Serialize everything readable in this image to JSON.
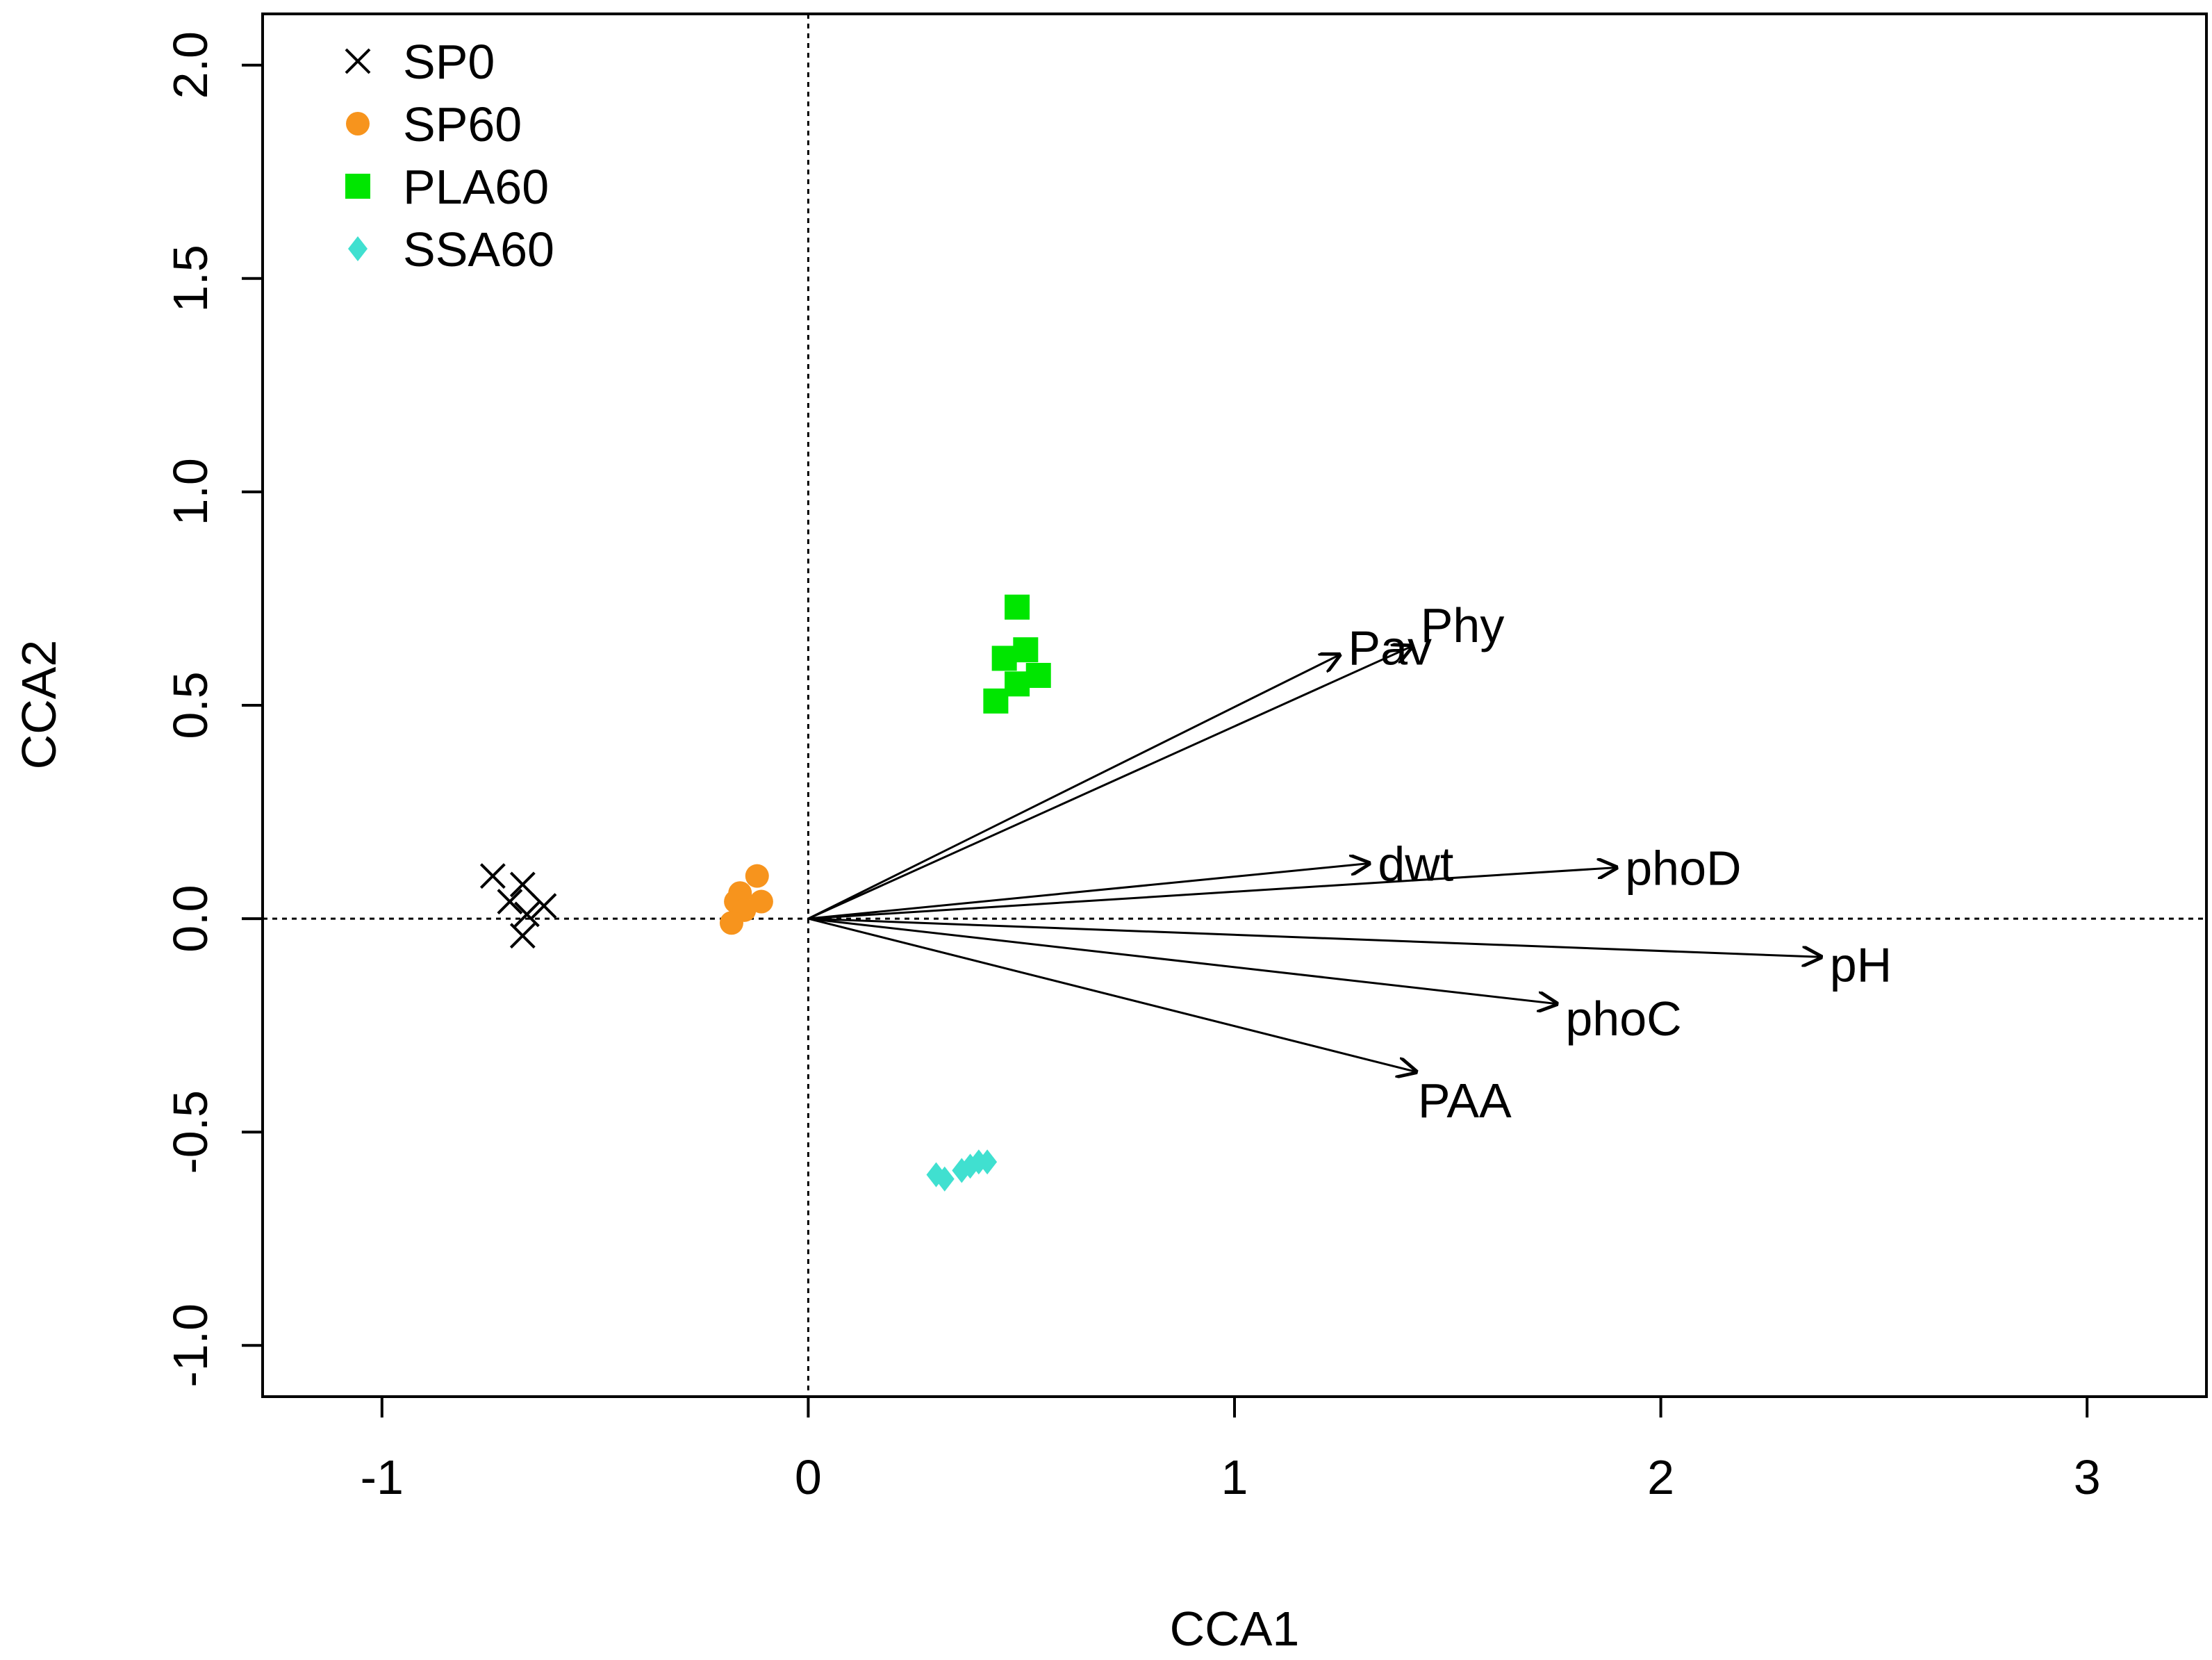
{
  "chart_data": {
    "type": "scatter",
    "title": "",
    "xlabel": "CCA1",
    "ylabel": "CCA2",
    "xlim": [
      -1.28,
      3.28
    ],
    "ylim": [
      -1.12,
      2.12
    ],
    "xticks": [
      -1,
      0,
      1,
      2,
      3
    ],
    "xtick_labels": [
      "-1",
      "0",
      "1",
      "2",
      "3"
    ],
    "yticks": [
      -1.0,
      -0.5,
      0.0,
      0.5,
      1.0,
      1.5,
      2.0
    ],
    "ytick_labels": [
      "-1.0",
      "-0.5",
      "0.0",
      "0.5",
      "1.0",
      "1.5",
      "2.0"
    ],
    "reference_lines": {
      "x": 0,
      "y": 0,
      "style": "dotted"
    },
    "legend_position": "top-left",
    "series": [
      {
        "name": "SP0",
        "marker": "x",
        "color": "#000000",
        "points": [
          [
            -0.74,
            0.1
          ],
          [
            -0.67,
            0.08
          ],
          [
            -0.7,
            0.04
          ],
          [
            -0.62,
            0.03
          ],
          [
            -0.66,
            0.01
          ],
          [
            -0.67,
            -0.04
          ]
        ]
      },
      {
        "name": "SP60",
        "marker": "circle",
        "color": "#F7941D",
        "points": [
          [
            -0.12,
            0.1
          ],
          [
            -0.11,
            0.04
          ],
          [
            -0.16,
            0.06
          ],
          [
            -0.17,
            0.04
          ],
          [
            -0.15,
            0.02
          ],
          [
            -0.18,
            -0.01
          ]
        ]
      },
      {
        "name": "PLA60",
        "marker": "square",
        "color": "#00E600",
        "points": [
          [
            0.49,
            0.73
          ],
          [
            0.51,
            0.63
          ],
          [
            0.46,
            0.61
          ],
          [
            0.54,
            0.57
          ],
          [
            0.49,
            0.55
          ],
          [
            0.44,
            0.51
          ]
        ]
      },
      {
        "name": "SSA60",
        "marker": "diamond",
        "color": "#40E0D0",
        "points": [
          [
            0.3,
            -0.6
          ],
          [
            0.32,
            -0.61
          ],
          [
            0.36,
            -0.59
          ],
          [
            0.38,
            -0.58
          ],
          [
            0.4,
            -0.57
          ],
          [
            0.42,
            -0.57
          ]
        ]
      }
    ],
    "vectors": [
      {
        "name": "Pav",
        "x": 1.25,
        "y": 0.62
      },
      {
        "name": "Phy",
        "x": 1.42,
        "y": 0.64
      },
      {
        "name": "dwt",
        "x": 1.32,
        "y": 0.13
      },
      {
        "name": "phoD",
        "x": 1.9,
        "y": 0.12
      },
      {
        "name": "pH",
        "x": 2.38,
        "y": -0.09
      },
      {
        "name": "phoC",
        "x": 1.76,
        "y": -0.2
      },
      {
        "name": "PAA",
        "x": 1.43,
        "y": -0.36
      }
    ]
  }
}
